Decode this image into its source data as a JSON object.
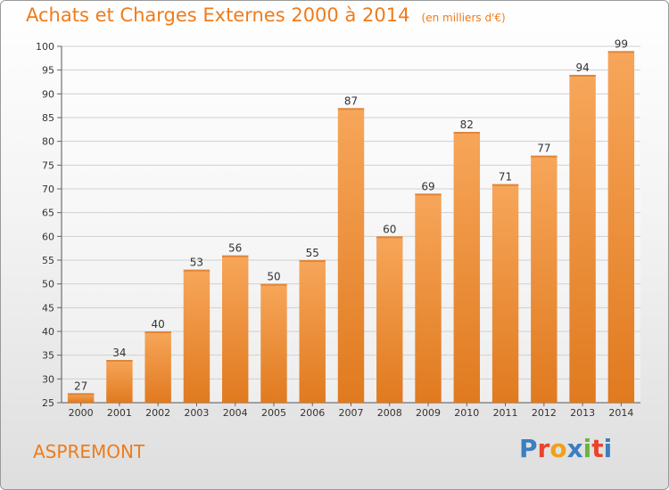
{
  "chart_data": {
    "type": "bar",
    "title": "Achats et Charges Externes 2000 à 2014",
    "unit_label": "(en milliers d'€)",
    "categories": [
      "2000",
      "2001",
      "2002",
      "2003",
      "2004",
      "2005",
      "2006",
      "2007",
      "2008",
      "2009",
      "2010",
      "2011",
      "2012",
      "2013",
      "2014"
    ],
    "values": [
      27,
      34,
      40,
      53,
      56,
      50,
      55,
      87,
      60,
      69,
      82,
      71,
      77,
      94,
      99
    ],
    "ylim": [
      25,
      100
    ],
    "yticks": [
      25,
      30,
      35,
      40,
      45,
      50,
      55,
      60,
      65,
      70,
      75,
      80,
      85,
      90,
      95,
      100
    ],
    "grid": true,
    "bar_color_light": "#f7a65a",
    "bar_color_dark": "#e07a1f"
  },
  "commune": "ASPREMONT",
  "logo": {
    "letters": [
      "P",
      "r",
      "o",
      "x",
      "i",
      "t",
      "i"
    ],
    "colors": [
      "#3a7fc1",
      "#e8452b",
      "#f0a01c",
      "#3a7fc1",
      "#6ab43e",
      "#e8452b",
      "#3a7fc1"
    ]
  },
  "colors": {
    "title": "#f07b1a",
    "axis_text": "#333333",
    "grid": "#d0d0d0"
  }
}
